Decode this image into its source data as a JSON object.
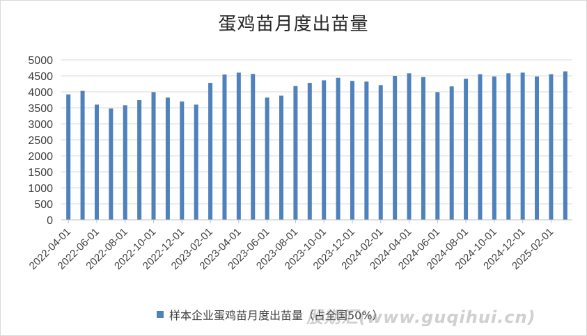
{
  "chart_data": {
    "type": "bar",
    "title": "蛋鸡苗月度出苗量",
    "legend": {
      "position": "bottom",
      "entries": [
        "样本企业蛋鸡苗月度出苗量（占全国50%）"
      ]
    },
    "series": [
      {
        "name": "样本企业蛋鸡苗月度出苗量（占全国50%）",
        "color": "#4f81bd",
        "values": [
          3920,
          4030,
          3600,
          3480,
          3580,
          3740,
          3990,
          3820,
          3700,
          3600,
          4280,
          4540,
          4600,
          4560,
          3820,
          3880,
          4180,
          4280,
          4360,
          4440,
          4340,
          4320,
          4210,
          4500,
          4580,
          4460,
          3990,
          4170,
          4410,
          4550,
          4480,
          4580,
          4600,
          4480,
          4550,
          4640
        ]
      }
    ],
    "x": [
      "2022-04-01",
      "2022-05-01",
      "2022-06-01",
      "2022-07-01",
      "2022-08-01",
      "2022-09-01",
      "2022-10-01",
      "2022-11-01",
      "2022-12-01",
      "2023-01-01",
      "2023-02-01",
      "2023-03-01",
      "2023-04-01",
      "2023-05-01",
      "2023-06-01",
      "2023-07-01",
      "2023-08-01",
      "2023-09-01",
      "2023-10-01",
      "2023-11-01",
      "2023-12-01",
      "2024-01-01",
      "2024-02-01",
      "2024-03-01",
      "2024-04-01",
      "2024-05-01",
      "2024-06-01",
      "2024-07-01",
      "2024-08-01",
      "2024-09-01",
      "2024-10-01",
      "2024-11-01",
      "2024-12-01",
      "2025-01-01",
      "2025-02-01",
      "2025-03-01"
    ],
    "x_tick_labels": [
      "2022-04-01",
      "2022-06-01",
      "2022-08-01",
      "2022-10-01",
      "2022-12-01",
      "2023-02-01",
      "2023-04-01",
      "2023-06-01",
      "2023-08-01",
      "2023-10-01",
      "2023-12-01",
      "2024-02-01",
      "2024-04-01",
      "2024-06-01",
      "2024-08-01",
      "2024-10-01",
      "2024-12-01",
      "2025-02-01"
    ],
    "y_ticks": [
      0,
      500,
      1000,
      1500,
      2000,
      2500,
      3000,
      3500,
      4000,
      4500,
      5000
    ],
    "ylim": [
      0,
      5000
    ],
    "grid": true,
    "xlabel": "",
    "ylabel": ""
  },
  "watermark": "股期汇(www.guqihui.cn)"
}
